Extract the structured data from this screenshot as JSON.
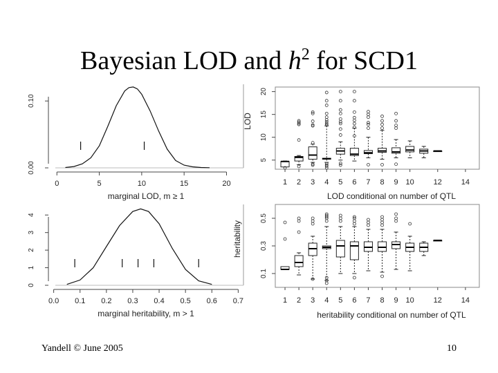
{
  "slide": {
    "title_pre": "Bayesian LOD and ",
    "title_h": "h",
    "title_sup": "2",
    "title_post": " for SCD1",
    "footer_author": "Yandell © June 2005",
    "footer_page": "10"
  },
  "chart_data": [
    {
      "type": "line",
      "xlabel": "marginal LOD, m ≥ 1",
      "xlim": [
        -1,
        22
      ],
      "ylim": [
        0,
        0.125
      ],
      "x_ticks": [
        "0",
        "5",
        "10",
        "15",
        "20"
      ],
      "y_ticks": [
        "0.00",
        "0.10"
      ],
      "x_tick_values": [
        0,
        5,
        10,
        15,
        20
      ],
      "y_tick_values": [
        0,
        0.1
      ],
      "x": [
        1,
        2,
        3,
        4,
        5,
        6,
        7,
        8,
        8.5,
        9,
        9.5,
        10,
        11,
        12,
        13,
        14,
        15,
        16,
        17,
        18
      ],
      "y": [
        0.0005,
        0.002,
        0.006,
        0.015,
        0.033,
        0.062,
        0.093,
        0.115,
        0.12,
        0.121,
        0.118,
        0.11,
        0.085,
        0.055,
        0.028,
        0.011,
        0.004,
        0.0015,
        0.0005,
        0.0002
      ],
      "marks": [
        2.8,
        10.3
      ]
    },
    {
      "type": "line",
      "xlabel": "marginal heritability, m > 1",
      "xlim": [
        -0.02,
        0.72
      ],
      "ylim": [
        0,
        4.6
      ],
      "x_ticks": [
        "0.0",
        "0.1",
        "0.2",
        "0.3",
        "0.4",
        "0.5",
        "0.6",
        "0.7"
      ],
      "y_ticks": [
        "0",
        "1",
        "2",
        "3",
        "4"
      ],
      "x_tick_values": [
        0,
        0.1,
        0.2,
        0.3,
        0.4,
        0.5,
        0.6,
        0.7
      ],
      "y_tick_values": [
        0,
        1,
        2,
        3,
        4
      ],
      "x": [
        0.05,
        0.1,
        0.15,
        0.2,
        0.25,
        0.3,
        0.33,
        0.36,
        0.4,
        0.45,
        0.5,
        0.55,
        0.6
      ],
      "y": [
        0.05,
        0.3,
        1.0,
        2.2,
        3.4,
        4.2,
        4.35,
        4.2,
        3.5,
        2.1,
        0.9,
        0.25,
        0.05
      ],
      "marks": [
        0.08,
        0.26,
        0.32,
        0.38,
        0.55
      ]
    },
    {
      "type": "box",
      "xlabel": "LOD conditional on number of QTL",
      "ylabel": "LOD",
      "xlim": [
        0.3,
        15
      ],
      "ylim": [
        3,
        21
      ],
      "x_ticks": [
        "1",
        "2",
        "3",
        "4",
        "5",
        "6",
        "7",
        "8",
        "9",
        "10",
        "12",
        "14"
      ],
      "x_tick_values": [
        1,
        2,
        3,
        4,
        5,
        6,
        7,
        8,
        9,
        10,
        12,
        14
      ],
      "y_ticks": [
        "5",
        "10",
        "15",
        "20"
      ],
      "y_tick_values": [
        5,
        10,
        15,
        20
      ],
      "boxes": [
        {
          "x": 1,
          "min": 3.5,
          "q1": 3.5,
          "med": 4.7,
          "q3": 4.7,
          "max": 4.8
        },
        {
          "x": 2,
          "min": 4.0,
          "q1": 4.8,
          "med": 5.6,
          "q3": 5.8,
          "max": 6.0
        },
        {
          "x": 3,
          "min": 4.5,
          "q1": 5.2,
          "med": 6.1,
          "q3": 7.9,
          "max": 8.5
        },
        {
          "x": 4,
          "min": 4.5,
          "q1": 5.2,
          "med": 5.3,
          "q3": 5.4,
          "max": 12.5
        },
        {
          "x": 5,
          "min": 5.0,
          "q1": 6.3,
          "med": 7.0,
          "q3": 7.6,
          "max": 9.0
        },
        {
          "x": 6,
          "min": 4.8,
          "q1": 6.0,
          "med": 6.3,
          "q3": 7.6,
          "max": 12.0
        },
        {
          "x": 7,
          "min": 5.5,
          "q1": 6.4,
          "med": 6.6,
          "q3": 7.1,
          "max": 10.0
        },
        {
          "x": 8,
          "min": 5.2,
          "q1": 6.7,
          "med": 7.0,
          "q3": 7.6,
          "max": 11.5
        },
        {
          "x": 9,
          "min": 5.5,
          "q1": 6.5,
          "med": 6.8,
          "q3": 7.7,
          "max": 9.5
        },
        {
          "x": 10,
          "min": 5.5,
          "q1": 6.8,
          "med": 7.2,
          "q3": 8.0,
          "max": 9.2
        },
        {
          "x": 11,
          "min": 5.5,
          "q1": 6.5,
          "med": 7.0,
          "q3": 7.4,
          "max": 8.0
        },
        {
          "x": 12,
          "min": 7.0,
          "q1": 7.0,
          "med": 7.0,
          "q3": 7.0,
          "max": 7.0
        }
      ],
      "outliers": [
        [
          1,
          3.3
        ],
        [
          2,
          3.6
        ],
        [
          2,
          9.4
        ],
        [
          2,
          12.8
        ],
        [
          2,
          13.0
        ],
        [
          2,
          13.3
        ],
        [
          2,
          13.6
        ],
        [
          3,
          3.9
        ],
        [
          3,
          4.1
        ],
        [
          3,
          8.8
        ],
        [
          3,
          12.5
        ],
        [
          3,
          12.7
        ],
        [
          3,
          13.5
        ],
        [
          3,
          15.2
        ],
        [
          3,
          15.5
        ],
        [
          4,
          3.3
        ],
        [
          4,
          3.7
        ],
        [
          4,
          3.9
        ],
        [
          4,
          4.2
        ],
        [
          4,
          12.7
        ],
        [
          4,
          13.0
        ],
        [
          4,
          13.4
        ],
        [
          4,
          13.8
        ],
        [
          4,
          14.4
        ],
        [
          4,
          15.2
        ],
        [
          4,
          17.0
        ],
        [
          4,
          18.0
        ],
        [
          4,
          19.8
        ],
        [
          5,
          3.9
        ],
        [
          5,
          4.3
        ],
        [
          5,
          10.5
        ],
        [
          5,
          11.8
        ],
        [
          5,
          13.0
        ],
        [
          5,
          13.4
        ],
        [
          5,
          14.0
        ],
        [
          5,
          15.2
        ],
        [
          5,
          16.0
        ],
        [
          5,
          18.0
        ],
        [
          5,
          20.0
        ],
        [
          6,
          10.3
        ],
        [
          6,
          12.2
        ],
        [
          6,
          13.0
        ],
        [
          6,
          13.7
        ],
        [
          6,
          14.3
        ],
        [
          6,
          15.5
        ],
        [
          6,
          18.0
        ],
        [
          6,
          20.0
        ],
        [
          7,
          4.0
        ],
        [
          7,
          12.0
        ],
        [
          7,
          12.8
        ],
        [
          7,
          13.2
        ],
        [
          7,
          14.4
        ],
        [
          7,
          15.0
        ],
        [
          7,
          15.6
        ],
        [
          8,
          4.0
        ],
        [
          8,
          12.0
        ],
        [
          8,
          12.8
        ],
        [
          8,
          13.6
        ],
        [
          8,
          14.6
        ],
        [
          9,
          4.1
        ],
        [
          9,
          12.0
        ],
        [
          9,
          12.6
        ],
        [
          9,
          13.6
        ],
        [
          9,
          15.2
        ]
      ]
    },
    {
      "type": "box",
      "xlabel": "heritability conditional on number of QTL",
      "ylabel": "heritability",
      "xlim": [
        0.3,
        15
      ],
      "ylim": [
        0,
        0.6
      ],
      "x_ticks": [
        "1",
        "2",
        "3",
        "4",
        "5",
        "6",
        "7",
        "8",
        "9",
        "10",
        "12",
        "14"
      ],
      "x_tick_values": [
        1,
        2,
        3,
        4,
        5,
        6,
        7,
        8,
        9,
        10,
        12,
        14
      ],
      "y_ticks": [
        "0.1",
        "0.3",
        "0.5"
      ],
      "y_tick_values": [
        0.1,
        0.3,
        0.5
      ],
      "boxes": [
        {
          "x": 1,
          "min": 0.13,
          "q1": 0.13,
          "med": 0.13,
          "q3": 0.15,
          "max": 0.15
        },
        {
          "x": 2,
          "min": 0.09,
          "q1": 0.15,
          "med": 0.18,
          "q3": 0.23,
          "max": 0.25
        },
        {
          "x": 3,
          "min": 0.06,
          "q1": 0.23,
          "med": 0.28,
          "q3": 0.32,
          "max": 0.37
        },
        {
          "x": 4,
          "min": 0.05,
          "q1": 0.28,
          "med": 0.29,
          "q3": 0.3,
          "max": 0.44
        },
        {
          "x": 5,
          "min": 0.1,
          "q1": 0.22,
          "med": 0.3,
          "q3": 0.34,
          "max": 0.44
        },
        {
          "x": 6,
          "min": 0.1,
          "q1": 0.2,
          "med": 0.3,
          "q3": 0.33,
          "max": 0.44
        },
        {
          "x": 7,
          "min": 0.12,
          "q1": 0.26,
          "med": 0.29,
          "q3": 0.33,
          "max": 0.42
        },
        {
          "x": 8,
          "min": 0.11,
          "q1": 0.26,
          "med": 0.29,
          "q3": 0.33,
          "max": 0.42
        },
        {
          "x": 9,
          "min": 0.13,
          "q1": 0.28,
          "med": 0.31,
          "q3": 0.33,
          "max": 0.4
        },
        {
          "x": 10,
          "min": 0.12,
          "q1": 0.26,
          "med": 0.29,
          "q3": 0.32,
          "max": 0.37
        },
        {
          "x": 11,
          "min": 0.23,
          "q1": 0.26,
          "med": 0.29,
          "q3": 0.32,
          "max": 0.33
        },
        {
          "x": 12,
          "min": 0.34,
          "q1": 0.34,
          "med": 0.34,
          "q3": 0.34,
          "max": 0.34
        }
      ],
      "outliers": [
        [
          1,
          0.35
        ],
        [
          1,
          0.47
        ],
        [
          2,
          0.4
        ],
        [
          2,
          0.48
        ],
        [
          2,
          0.5
        ],
        [
          3,
          0.06
        ],
        [
          3,
          0.46
        ],
        [
          3,
          0.48
        ],
        [
          3,
          0.5
        ],
        [
          4,
          0.03
        ],
        [
          4,
          0.05
        ],
        [
          4,
          0.07
        ],
        [
          4,
          0.48
        ],
        [
          4,
          0.5
        ],
        [
          4,
          0.51
        ],
        [
          4,
          0.52
        ],
        [
          4,
          0.53
        ],
        [
          5,
          0.48
        ],
        [
          5,
          0.5
        ],
        [
          5,
          0.52
        ],
        [
          6,
          0.07
        ],
        [
          6,
          0.46
        ],
        [
          6,
          0.48
        ],
        [
          6,
          0.5
        ],
        [
          6,
          0.51
        ],
        [
          7,
          0.45
        ],
        [
          7,
          0.47
        ],
        [
          7,
          0.49
        ],
        [
          8,
          0.08
        ],
        [
          8,
          0.45
        ],
        [
          8,
          0.47
        ],
        [
          8,
          0.49
        ],
        [
          8,
          0.51
        ],
        [
          9,
          0.48
        ],
        [
          9,
          0.5
        ],
        [
          9,
          0.53
        ],
        [
          10,
          0.46
        ]
      ]
    }
  ]
}
